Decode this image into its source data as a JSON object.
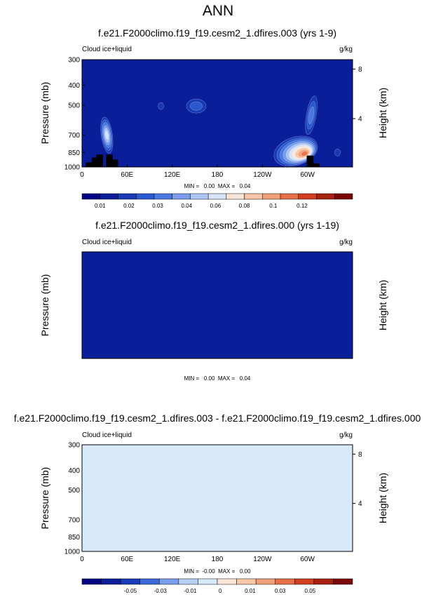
{
  "title": "ANN",
  "chart_data": [
    {
      "type": "heatmap",
      "title": "f.e21.F2000climo.f19_f19.cesm2_1.dfires.003 (yrs 1-9)",
      "left_label": "Cloud ice+liquid",
      "right_label": "g/kg",
      "ylabel": "Pressure (mb)",
      "ylabel_right": "Height (km)",
      "x_ticks": [
        "0",
        "60E",
        "120E",
        "180",
        "120W",
        "60W"
      ],
      "y_ticks": [
        "300",
        "400",
        "500",
        "700",
        "850",
        "1000"
      ],
      "y_ticks_right": [
        "8",
        "4"
      ],
      "stats": "MIN =   0.00  MAX =   0.04",
      "colorbar_labels": [
        "0.01",
        "0.02",
        "0.03",
        "0.04",
        "0.06",
        "0.08",
        "0.1",
        "0.12"
      ],
      "features": [
        {
          "lon": 33,
          "p": 700,
          "level": 6,
          "kind": "west"
        },
        {
          "lon": 105,
          "p": 505,
          "level": 1,
          "kind": "small"
        },
        {
          "lon": 152,
          "p": 505,
          "level": 2,
          "kind": "blob"
        },
        {
          "lon": 283,
          "p": 835,
          "level": 10,
          "kind": "east"
        },
        {
          "lon": 305,
          "p": 560,
          "level": 3,
          "kind": "column"
        },
        {
          "lon": 340,
          "p": 850,
          "level": 1,
          "kind": "small"
        }
      ],
      "topography": [
        [
          8,
          1000,
          950
        ],
        [
          16,
          1000,
          900
        ],
        [
          22,
          1000,
          870
        ],
        [
          35,
          1000,
          870
        ],
        [
          42,
          1000,
          920
        ],
        [
          302,
          1000,
          880
        ],
        [
          310,
          1000,
          960
        ]
      ]
    },
    {
      "type": "heatmap",
      "title": "f.e21.F2000climo.f19_f19.cesm2_1.dfires.000 (yrs 1-19)",
      "left_label": "Cloud ice+liquid",
      "right_label": "g/kg",
      "ylabel": "Pressure (mb)",
      "ylabel_right": "Height (km)",
      "x_ticks": [
        "0",
        "60E",
        "120E",
        "180",
        "120W",
        "60W"
      ],
      "y_ticks": [
        "300",
        "400",
        "500",
        "700",
        "850",
        "1000"
      ],
      "y_ticks_right": [
        "8",
        "4"
      ],
      "stats": "MIN =   0.00  MAX =   0.04",
      "colorbar_labels": [
        "0.01",
        "0.02",
        "0.03",
        "0.04",
        "0.06",
        "0.08",
        "0.1",
        "0.12"
      ],
      "features": [
        {
          "lon": 33,
          "p": 700,
          "level": 6,
          "kind": "west"
        },
        {
          "lon": 105,
          "p": 505,
          "level": 1,
          "kind": "small"
        },
        {
          "lon": 152,
          "p": 505,
          "level": 2,
          "kind": "blob"
        },
        {
          "lon": 283,
          "p": 840,
          "level": 10,
          "kind": "east"
        },
        {
          "lon": 305,
          "p": 560,
          "level": 3,
          "kind": "column"
        },
        {
          "lon": 340,
          "p": 850,
          "level": 1,
          "kind": "small"
        }
      ],
      "topography": [
        [
          8,
          1000,
          950
        ],
        [
          16,
          1000,
          900
        ],
        [
          22,
          1000,
          870
        ],
        [
          35,
          1000,
          870
        ],
        [
          42,
          1000,
          920
        ],
        [
          100,
          1000,
          985
        ],
        [
          302,
          1000,
          880
        ],
        [
          310,
          1000,
          960
        ]
      ]
    },
    {
      "type": "heatmap",
      "title": "f.e21.F2000climo.f19_f19.cesm2_1.dfires.003 - f.e21.F2000climo.f19_f19.cesm2_1.dfires.000",
      "left_label": "Cloud ice+liquid",
      "right_label": "g/kg",
      "ylabel": "Pressure (mb)",
      "ylabel_right": "Height (km)",
      "x_ticks": [
        "0",
        "60E",
        "120E",
        "180",
        "120W",
        "60W"
      ],
      "y_ticks": [
        "300",
        "400",
        "500",
        "700",
        "850",
        "1000"
      ],
      "y_ticks_right": [
        "8",
        "4"
      ],
      "stats": "MIN =  -0.00  MAX =   0.00",
      "colorbar_labels": [
        "-0.05",
        "-0.03",
        "-0.01",
        "0",
        "0.01",
        "0.03",
        "0.05"
      ],
      "field": "difference, near zero: alternating light blue (slightly negative) and light peach (slightly positive) bands",
      "topography": [
        [
          8,
          1000,
          950
        ],
        [
          16,
          1000,
          900
        ],
        [
          22,
          1000,
          870
        ],
        [
          35,
          1000,
          870
        ],
        [
          42,
          1000,
          920
        ],
        [
          100,
          1000,
          985
        ],
        [
          302,
          1000,
          880
        ],
        [
          310,
          1000,
          960
        ]
      ]
    }
  ],
  "colors": {
    "background_field": "#0a1e9a",
    "seq_palette": [
      "#000080",
      "#0a1e9a",
      "#1a3cb8",
      "#2a5ad0",
      "#4a7ae0",
      "#7a9eec",
      "#aec6f4",
      "#d6e6fb",
      "#fce8d8",
      "#f6c6a8",
      "#f0a078",
      "#e87048",
      "#d0401e",
      "#a82010",
      "#7a0808"
    ],
    "div_palette": [
      "#000080",
      "#0a1e9a",
      "#1a3cb8",
      "#3a68d8",
      "#7a9eec",
      "#b6d0f6",
      "#d6e8fa",
      "#fde6d6",
      "#f8c8a8",
      "#f0a078",
      "#e87048",
      "#d0401e",
      "#a82010",
      "#7a0808"
    ],
    "diff_negative": "#d8eafa",
    "diff_positive": "#fce6d6",
    "topography": "#000000"
  }
}
